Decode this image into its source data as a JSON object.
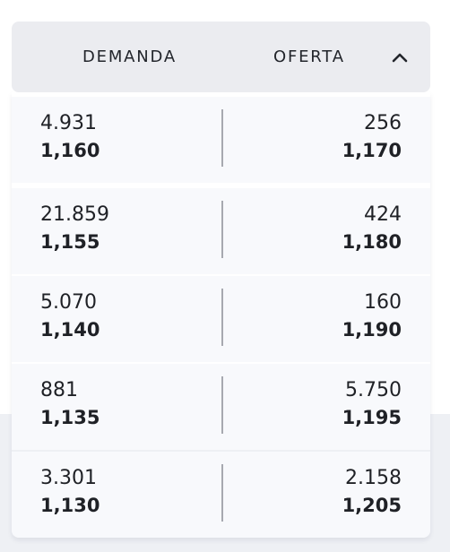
{
  "header": {
    "demand_label": "DEMANDA",
    "offer_label": "OFERTA",
    "collapse_icon": "chevron-up-icon"
  },
  "rows": [
    {
      "bid_qty": "4.931",
      "bid_price": "1,160",
      "ask_qty": "256",
      "ask_price": "1,170"
    },
    {
      "bid_qty": "21.859",
      "bid_price": "1,155",
      "ask_qty": "424",
      "ask_price": "1,180"
    },
    {
      "bid_qty": "5.070",
      "bid_price": "1,140",
      "ask_qty": "160",
      "ask_price": "1,190"
    },
    {
      "bid_qty": "881",
      "bid_price": "1,135",
      "ask_qty": "5.750",
      "ask_price": "1,195"
    },
    {
      "bid_qty": "3.301",
      "bid_price": "1,130",
      "ask_qty": "2.158",
      "ask_price": "1,205"
    }
  ],
  "colors": {
    "header_bg": "#ebecf0",
    "row_bg": "#f8f9fc",
    "divider": "#a7a9b0",
    "text": "#1f2126"
  }
}
